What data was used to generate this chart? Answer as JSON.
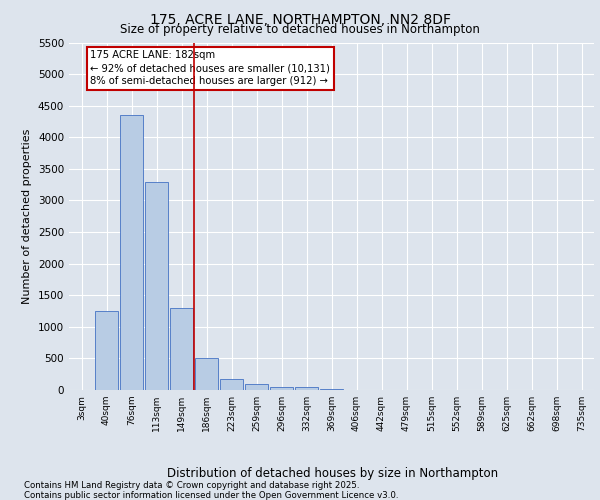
{
  "title_line1": "175, ACRE LANE, NORTHAMPTON, NN2 8DF",
  "title_line2": "Size of property relative to detached houses in Northampton",
  "xlabel": "Distribution of detached houses by size in Northampton",
  "ylabel": "Number of detached properties",
  "categories": [
    "3sqm",
    "40sqm",
    "76sqm",
    "113sqm",
    "149sqm",
    "186sqm",
    "223sqm",
    "259sqm",
    "296sqm",
    "332sqm",
    "369sqm",
    "406sqm",
    "442sqm",
    "479sqm",
    "515sqm",
    "552sqm",
    "589sqm",
    "625sqm",
    "662sqm",
    "698sqm",
    "735sqm"
  ],
  "values": [
    0,
    1250,
    4350,
    3300,
    1300,
    500,
    175,
    100,
    50,
    50,
    20,
    5,
    2,
    0,
    0,
    0,
    0,
    0,
    0,
    0,
    0
  ],
  "bar_color": "#b8cce4",
  "bar_edge_color": "#4472c4",
  "vline_index": 5,
  "vline_color": "#c00000",
  "annotation_text": "175 ACRE LANE: 182sqm\n← 92% of detached houses are smaller (10,131)\n8% of semi-detached houses are larger (912) →",
  "annotation_box_color": "#ffffff",
  "annotation_box_edge_color": "#c00000",
  "ylim": [
    0,
    5500
  ],
  "yticks": [
    0,
    500,
    1000,
    1500,
    2000,
    2500,
    3000,
    3500,
    4000,
    4500,
    5000,
    5500
  ],
  "footnote_line1": "Contains HM Land Registry data © Crown copyright and database right 2025.",
  "footnote_line2": "Contains public sector information licensed under the Open Government Licence v3.0.",
  "background_color": "#dde4ed",
  "plot_bg_color": "#dde4ed",
  "grid_color": "#ffffff"
}
